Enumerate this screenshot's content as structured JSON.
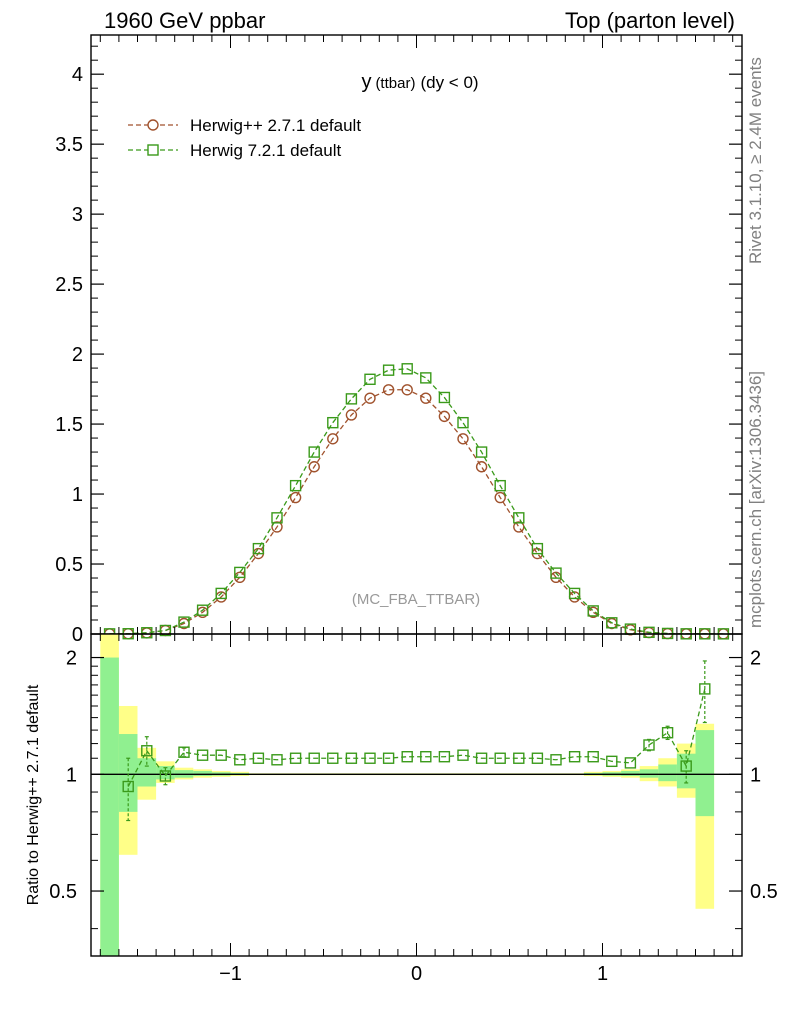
{
  "header": {
    "left": "1960 GeV ppbar",
    "right": "Top (parton level)"
  },
  "side_labels": {
    "rivet": "Rivet 3.1.10, ≥ 2.4M events",
    "mcplots": "mcplots.cern.ch [arXiv:1306.3436]"
  },
  "chart_data": [
    {
      "type": "line",
      "panel": "main",
      "title": "y (ttbar) (dy < 0)",
      "title_main": "y",
      "title_small": "(ttbar)",
      "title_tail": "(dy < 0)",
      "watermark": "(MC_FBA_TTBAR)",
      "xlim": [
        -1.75,
        1.75
      ],
      "ylim": [
        0,
        4.28
      ],
      "y_ticks": [
        0,
        0.5,
        1,
        1.5,
        2,
        2.5,
        3,
        3.5,
        4
      ],
      "y_tick_labels": [
        "0",
        "0.5",
        "1",
        "1.5",
        "2",
        "2.5",
        "3",
        "3.5",
        "4"
      ],
      "legend_position": "top-left",
      "x": [
        -1.65,
        -1.55,
        -1.45,
        -1.35,
        -1.25,
        -1.15,
        -1.05,
        -0.95,
        -0.85,
        -0.75,
        -0.65,
        -0.55,
        -0.45,
        -0.35,
        -0.25,
        -0.15,
        -0.05,
        0.05,
        0.15,
        0.25,
        0.35,
        0.45,
        0.55,
        0.65,
        0.75,
        0.85,
        0.95,
        1.05,
        1.15,
        1.25,
        1.35,
        1.45,
        1.55,
        1.65
      ],
      "series": [
        {
          "name": "Herwig++ 2.7.1 default",
          "color": "#a0522d",
          "marker": "circle",
          "values": [
            0.001,
            0.002,
            0.008,
            0.025,
            0.075,
            0.155,
            0.265,
            0.405,
            0.575,
            0.765,
            0.975,
            1.195,
            1.395,
            1.565,
            1.685,
            1.745,
            1.745,
            1.685,
            1.555,
            1.395,
            1.195,
            0.975,
            0.765,
            0.575,
            0.405,
            0.265,
            0.155,
            0.075,
            0.03,
            0.01,
            0.003,
            0.001,
            0.001,
            0.001
          ]
        },
        {
          "name": "Herwig 7.2.1 default",
          "color": "#3a9a1a",
          "marker": "square",
          "values": [
            0.001,
            0.002,
            0.009,
            0.025,
            0.085,
            0.17,
            0.29,
            0.44,
            0.61,
            0.83,
            1.06,
            1.3,
            1.51,
            1.68,
            1.82,
            1.885,
            1.895,
            1.83,
            1.69,
            1.51,
            1.3,
            1.06,
            0.83,
            0.61,
            0.435,
            0.29,
            0.165,
            0.08,
            0.035,
            0.012,
            0.004,
            0.0012,
            0.0012,
            0.001
          ]
        }
      ]
    },
    {
      "type": "line",
      "panel": "ratio",
      "ylabel": "Ratio to Herwig++ 2.7.1 default",
      "xlim": [
        -1.75,
        1.75
      ],
      "ylim": [
        0.34,
        2.3
      ],
      "y_ticks": [
        0.5,
        1,
        2
      ],
      "y_tick_labels": [
        "0.5",
        "1",
        "2"
      ],
      "x_ticks": [
        -1,
        0,
        1
      ],
      "x_tick_labels": [
        "−1",
        "0",
        "1"
      ],
      "reference_line": 1,
      "bands": {
        "edges": [
          -1.7,
          -1.6,
          -1.5,
          -1.4,
          -1.3,
          -1.2,
          -1.1,
          -1.0,
          -0.9,
          0.9,
          1.0,
          1.1,
          1.2,
          1.3,
          1.4,
          1.5,
          1.6
        ],
        "yellow": [
          [
            0.34,
            2.3
          ],
          [
            0.62,
            1.5
          ],
          [
            0.86,
            1.17
          ],
          [
            0.95,
            1.08
          ],
          [
            0.97,
            1.04
          ],
          [
            0.98,
            1.03
          ],
          [
            0.985,
            1.02
          ],
          [
            0.99,
            1.015
          ],
          [
            0.995,
            1.006
          ],
          [
            0.99,
            1.015
          ],
          [
            0.985,
            1.02
          ],
          [
            0.98,
            1.03
          ],
          [
            0.96,
            1.05
          ],
          [
            0.93,
            1.1
          ],
          [
            0.87,
            1.2
          ],
          [
            0.45,
            1.35
          ]
        ],
        "green": [
          [
            0.34,
            2.0
          ],
          [
            0.8,
            1.27
          ],
          [
            0.93,
            1.1
          ],
          [
            0.97,
            1.05
          ],
          [
            0.98,
            1.025
          ],
          [
            0.99,
            1.02
          ],
          [
            0.992,
            1.012
          ],
          [
            0.995,
            1.008
          ],
          [
            0.998,
            1.003
          ],
          [
            0.995,
            1.008
          ],
          [
            0.992,
            1.012
          ],
          [
            0.99,
            1.02
          ],
          [
            0.98,
            1.03
          ],
          [
            0.96,
            1.06
          ],
          [
            0.92,
            1.13
          ],
          [
            0.78,
            1.3
          ]
        ]
      },
      "series": [
        {
          "name": "Herwig 7.2.1 default",
          "color": "#3a9a1a",
          "marker": "square",
          "x": [
            -1.55,
            -1.45,
            -1.35,
            -1.25,
            -1.15,
            -1.05,
            -0.95,
            -0.85,
            -0.75,
            -0.65,
            -0.55,
            -0.45,
            -0.35,
            -0.25,
            -0.15,
            -0.05,
            0.05,
            0.15,
            0.25,
            0.35,
            0.45,
            0.55,
            0.65,
            0.75,
            0.85,
            0.95,
            1.05,
            1.15,
            1.25,
            1.35,
            1.45,
            1.55
          ],
          "values": [
            0.93,
            1.15,
            0.99,
            1.14,
            1.12,
            1.12,
            1.09,
            1.1,
            1.09,
            1.1,
            1.1,
            1.1,
            1.1,
            1.1,
            1.1,
            1.11,
            1.11,
            1.11,
            1.12,
            1.1,
            1.1,
            1.1,
            1.1,
            1.09,
            1.11,
            1.11,
            1.08,
            1.07,
            1.19,
            1.28,
            1.05,
            1.66
          ],
          "err": [
            0.17,
            0.1,
            0.05,
            0.03,
            0.02,
            0.015,
            0.01,
            0.01,
            0.008,
            0.008,
            0.008,
            0.008,
            0.008,
            0.008,
            0.008,
            0.008,
            0.008,
            0.008,
            0.008,
            0.008,
            0.008,
            0.008,
            0.008,
            0.008,
            0.01,
            0.01,
            0.015,
            0.02,
            0.04,
            0.05,
            0.1,
            0.3
          ]
        }
      ]
    }
  ]
}
